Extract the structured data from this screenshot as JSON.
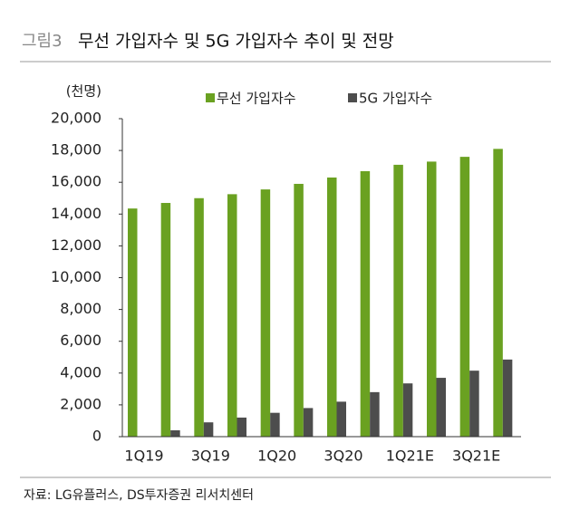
{
  "chart_data": {
    "type": "bar",
    "figure_label": "그림3",
    "title": "무선 가입자수 및 5G 가입자수 추이 및 전망",
    "unit": "(천명)",
    "source": "자료: LG유플러스, DS투자증권 리서치센터",
    "categories": [
      "1Q19",
      null,
      "3Q19",
      null,
      "1Q20",
      null,
      "3Q20",
      null,
      "1Q21E",
      null,
      "3Q21E",
      null
    ],
    "series": [
      {
        "name": "무선 가입자수",
        "color": "#6aa121",
        "values": [
          14350,
          14700,
          15000,
          15250,
          15550,
          15900,
          16300,
          16700,
          17100,
          17300,
          17600,
          18100
        ]
      },
      {
        "name": "5G 가입자수",
        "color": "#4d4d4d",
        "values": [
          0,
          400,
          900,
          1200,
          1500,
          1800,
          2200,
          2800,
          3350,
          3700,
          4150,
          4850
        ]
      }
    ],
    "ylim": [
      0,
      20000
    ],
    "yticks": [
      {
        "value": 0,
        "label": "0"
      },
      {
        "value": 2000,
        "label": "2,000"
      },
      {
        "value": 4000,
        "label": "4,000"
      },
      {
        "value": 6000,
        "label": "6,000"
      },
      {
        "value": 8000,
        "label": "8,000"
      },
      {
        "value": 10000,
        "label": "10,000"
      },
      {
        "value": 12000,
        "label": "12,000"
      },
      {
        "value": 14000,
        "label": "14,000"
      },
      {
        "value": 16000,
        "label": "16,000"
      },
      {
        "value": 18000,
        "label": "18,000"
      },
      {
        "value": 20000,
        "label": "20,000"
      }
    ],
    "grid": false,
    "legend": "top"
  }
}
